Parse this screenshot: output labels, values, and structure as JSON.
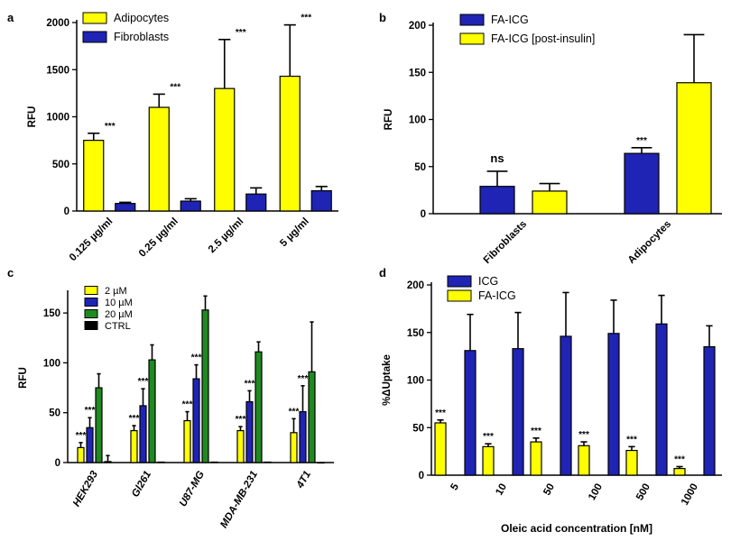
{
  "colors": {
    "yellow": "#ffff00",
    "blue": "#1f24b4",
    "green": "#1f8a1f",
    "black": "#000000"
  },
  "chart_data": [
    {
      "panel": "a",
      "type": "bar",
      "ylabel": "RFU",
      "ylim": [
        0,
        2000
      ],
      "yticks": [
        "0",
        "500",
        "1000",
        "1500",
        "2000"
      ],
      "categories": [
        "0.125 µg/ml",
        "0.25 µg/ml",
        "2.5 µg/ml",
        "5 µg/ml"
      ],
      "series": [
        {
          "name": "Adipocytes",
          "color": "yellow",
          "values": [
            750,
            1100,
            1300,
            1430
          ],
          "errors": [
            75,
            140,
            520,
            545
          ],
          "signif": [
            "***",
            "***",
            "***",
            "***"
          ]
        },
        {
          "name": "Fibroblasts",
          "color": "blue",
          "values": [
            80,
            105,
            180,
            215
          ],
          "errors": [
            12,
            25,
            65,
            45
          ],
          "signif": [
            "",
            "",
            "",
            ""
          ]
        }
      ],
      "legend": "top-left"
    },
    {
      "panel": "b",
      "type": "bar",
      "ylabel": "RFU",
      "ylim": [
        0,
        200
      ],
      "yticks": [
        "0",
        "50",
        "100",
        "150",
        "200"
      ],
      "categories": [
        "Fibroblasts",
        "Adipocytes"
      ],
      "series": [
        {
          "name": "FA-ICG",
          "color": "blue",
          "values": [
            29,
            64
          ],
          "errors": [
            16,
            6
          ],
          "signif": [
            "ns",
            "***"
          ]
        },
        {
          "name": "FA-ICG [post-insulin]",
          "color": "yellow",
          "values": [
            24,
            139
          ],
          "errors": [
            8,
            51
          ],
          "signif": [
            "",
            ""
          ]
        }
      ],
      "legend": "top-left"
    },
    {
      "panel": "c",
      "type": "bar",
      "ylabel": "RFU",
      "ylim": [
        0,
        170
      ],
      "yticks": [
        "0",
        "50",
        "100",
        "150"
      ],
      "categories": [
        "HEK293",
        "Gl261",
        "U87-MG",
        "MDA-MB-231",
        "4T1"
      ],
      "series": [
        {
          "name": "2 µM",
          "color": "yellow",
          "values": [
            15,
            32,
            42,
            32,
            30
          ],
          "errors": [
            5,
            5,
            9,
            4,
            14
          ],
          "signif": [
            "***",
            "***",
            "***",
            "***",
            "***"
          ]
        },
        {
          "name": "10 µM",
          "color": "blue",
          "values": [
            35,
            57,
            84,
            61,
            51
          ],
          "errors": [
            10,
            17,
            14,
            11,
            26
          ],
          "signif": [
            "***",
            "***",
            "***",
            "***",
            "***"
          ]
        },
        {
          "name": "20 µM",
          "color": "green",
          "values": [
            75,
            103,
            153,
            111,
            91
          ],
          "errors": [
            14,
            15,
            14,
            10,
            50
          ],
          "signif": [
            "",
            "",
            "",
            "",
            ""
          ]
        },
        {
          "name": "CTRL",
          "color": "black",
          "values": [
            1,
            0.5,
            0.5,
            0.5,
            0
          ],
          "errors": [
            6,
            0,
            0,
            0,
            0
          ],
          "signif": [
            "",
            "",
            "",
            "",
            ""
          ]
        }
      ],
      "legend": "top-left"
    },
    {
      "panel": "d",
      "type": "bar",
      "xlabel": "Oleic acid concentration [nM]",
      "ylabel": "%ΔUptake",
      "ylim": [
        0,
        200
      ],
      "yticks": [
        "0",
        "50",
        "100",
        "150",
        "200"
      ],
      "categories": [
        "5",
        "10",
        "50",
        "100",
        "500",
        "1000"
      ],
      "series": [
        {
          "name": "FA-ICG",
          "color": "yellow",
          "values": [
            55,
            30,
            35,
            31,
            26,
            7
          ],
          "errors": [
            3,
            3,
            4,
            4,
            4,
            2
          ],
          "signif": [
            "***",
            "***",
            "***",
            "***",
            "***",
            "***"
          ]
        },
        {
          "name": "ICG",
          "color": "blue",
          "values": [
            131,
            133,
            146,
            149,
            159,
            135
          ],
          "errors": [
            38,
            38,
            46,
            35,
            30,
            22
          ],
          "signif": [
            "",
            "",
            "",
            "",
            "",
            ""
          ]
        }
      ],
      "legend_order": [
        "ICG",
        "FA-ICG"
      ],
      "legend": "top-left"
    }
  ]
}
